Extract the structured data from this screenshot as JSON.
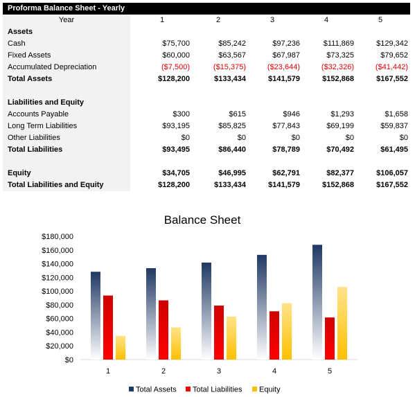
{
  "table": {
    "title": "Proforma Balance Sheet - Yearly",
    "year_label": "Year",
    "years": [
      "1",
      "2",
      "3",
      "4",
      "5"
    ],
    "rows": [
      {
        "label": "Assets",
        "bold": true,
        "values": []
      },
      {
        "label": "Cash",
        "bold": false,
        "values": [
          "$75,700",
          "$85,242",
          "$97,236",
          "$111,869",
          "$129,342"
        ]
      },
      {
        "label": "Fixed Assets",
        "bold": false,
        "values": [
          "$60,000",
          "$63,567",
          "$67,987",
          "$73,325",
          "$79,652"
        ]
      },
      {
        "label": "Accumulated Depreciation",
        "bold": false,
        "negative": true,
        "values": [
          "($7,500)",
          "($15,375)",
          "($23,644)",
          "($32,326)",
          "($41,442)"
        ]
      },
      {
        "label": "Total Assets",
        "bold": true,
        "values": [
          "$128,200",
          "$133,434",
          "$141,579",
          "$152,868",
          "$167,552"
        ]
      },
      {
        "label": "",
        "bold": false,
        "values": []
      },
      {
        "label": "Liabilities and Equity",
        "bold": true,
        "values": []
      },
      {
        "label": "Accounts Payable",
        "bold": false,
        "values": [
          "$300",
          "$615",
          "$946",
          "$1,293",
          "$1,658"
        ]
      },
      {
        "label": "Long Term Liabilities",
        "bold": false,
        "values": [
          "$93,195",
          "$85,825",
          "$77,843",
          "$69,199",
          "$59,837"
        ]
      },
      {
        "label": "Other Liabilities",
        "bold": false,
        "values": [
          "$0",
          "$0",
          "$0",
          "$0",
          "$0"
        ]
      },
      {
        "label": "Total Liabilities",
        "bold": true,
        "values": [
          "$93,495",
          "$86,440",
          "$78,789",
          "$70,492",
          "$61,495"
        ]
      },
      {
        "label": "",
        "bold": false,
        "values": []
      },
      {
        "label": "Equity",
        "bold": true,
        "values": [
          "$34,705",
          "$46,995",
          "$62,791",
          "$82,377",
          "$106,057"
        ]
      },
      {
        "label": "Total Liabilities and Equity",
        "bold": true,
        "values": [
          "$128,200",
          "$133,434",
          "$141,579",
          "$152,868",
          "$167,552"
        ]
      }
    ]
  },
  "chart_data": {
    "type": "bar",
    "title": "Balance Sheet",
    "categories": [
      "1",
      "2",
      "3",
      "4",
      "5"
    ],
    "series": [
      {
        "name": "Total Assets",
        "values": [
          128200,
          133434,
          141579,
          152868,
          167552
        ],
        "color": "#1f3864"
      },
      {
        "name": "Total Liabilities",
        "values": [
          93495,
          86440,
          78789,
          70492,
          61495
        ],
        "color": "#ff0000"
      },
      {
        "name": "Equity",
        "values": [
          34705,
          46995,
          62791,
          82377,
          106057
        ],
        "color": "#ffc000"
      }
    ],
    "ylim": [
      0,
      180000
    ],
    "yticks": [
      0,
      20000,
      40000,
      60000,
      80000,
      100000,
      120000,
      140000,
      160000,
      180000
    ],
    "ytick_labels": [
      "$0",
      "$20,000",
      "$40,000",
      "$60,000",
      "$80,000",
      "$100,000",
      "$120,000",
      "$140,000",
      "$160,000",
      "$180,000"
    ],
    "grid": false,
    "legend_position": "bottom",
    "xlabel": "",
    "ylabel": ""
  }
}
